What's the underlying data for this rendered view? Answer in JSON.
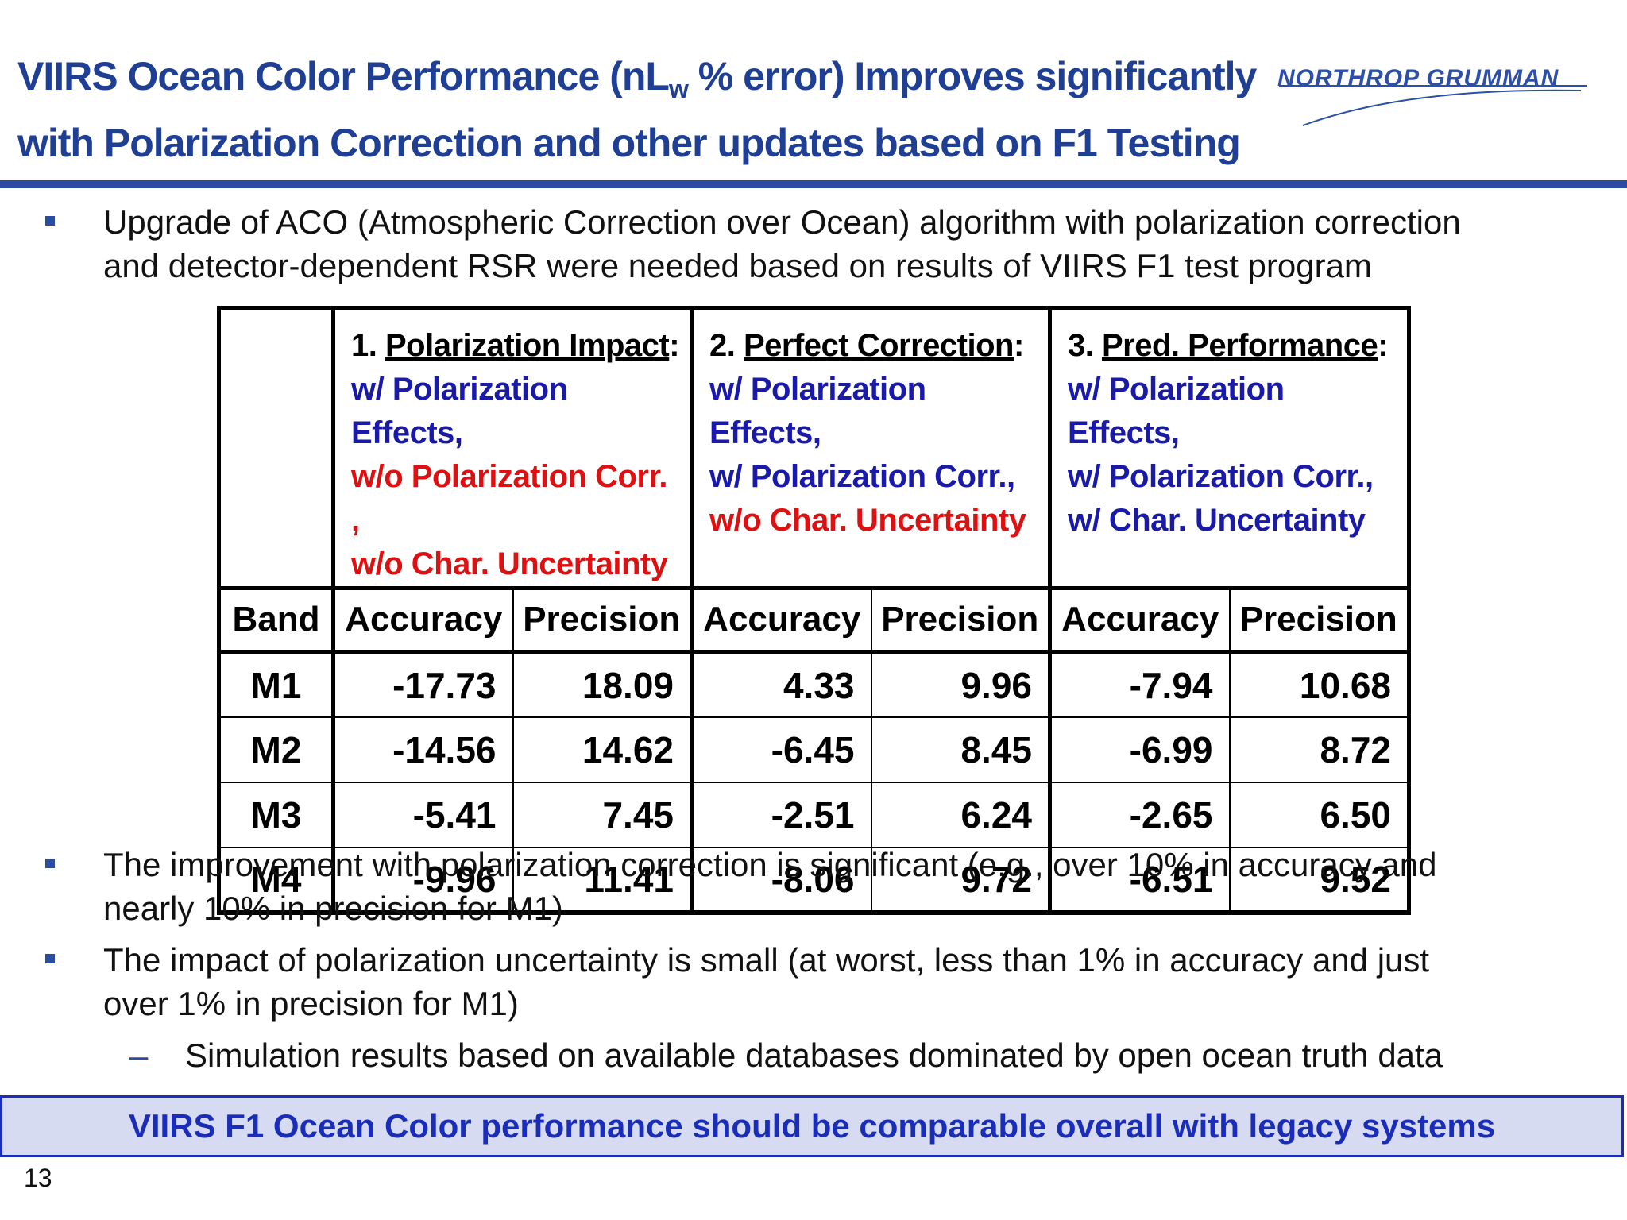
{
  "slide": {
    "title_line1_pre": "VIIRS Ocean Color Performance (nL",
    "title_line1_sub": "w",
    "title_line1_post": " % error) Improves significantly",
    "title_line2": "with Polarization Correction and other updates based on F1 Testing",
    "logo_text": "NORTHROP GRUMMAN",
    "page_number": "13",
    "banner": "VIIRS F1 Ocean Color performance should be comparable overall with legacy systems"
  },
  "bullets": [
    {
      "line1": "Upgrade of ACO (Atmospheric Correction over Ocean) algorithm with polarization correction",
      "line2": "and detector-dependent RSR were needed based on results of VIIRS F1 test program"
    },
    {
      "line1": "The improvement with polarization correction is significant (e.g., over 10% in accuracy and",
      "line2": "nearly 10% in precision for M1)"
    },
    {
      "line1": "The impact of polarization uncertainty is small (at worst, less than 1% in accuracy and just",
      "line2": "over 1% in precision for M1)"
    }
  ],
  "sub_bullet": {
    "dash": "–",
    "text": "Simulation results based on available databases dominated by open ocean truth data"
  },
  "table": {
    "groups": [
      {
        "num": "1.",
        "name": "Polarization Impact",
        "colon": ":",
        "l1": "w/ Polarization Effects,",
        "l2": "w/o Polarization Corr. ,",
        "l3": "w/o Char. Uncertainty"
      },
      {
        "num": "2.",
        "name": "Perfect Correction",
        "colon": ":",
        "l1": "w/ Polarization Effects,",
        "l2": "w/ Polarization Corr.,",
        "l3": "w/o Char. Uncertainty"
      },
      {
        "num": "3.",
        "name": "Pred. Performance",
        "colon": ":",
        "l1": "w/ Polarization Effects,",
        "l2": "w/ Polarization Corr.,",
        "l3": "w/ Char. Uncertainty"
      }
    ],
    "col_band": "Band",
    "col_accuracy": "Accuracy",
    "col_precision": "Precision",
    "rows": [
      {
        "band": "M1",
        "values": [
          "-17.73",
          "18.09",
          "4.33",
          "9.96",
          "-7.94",
          "10.68"
        ]
      },
      {
        "band": "M2",
        "values": [
          "-14.56",
          "14.62",
          "-6.45",
          "8.45",
          "-6.99",
          "8.72"
        ]
      },
      {
        "band": "M3",
        "values": [
          "-5.41",
          "7.45",
          "-2.51",
          "6.24",
          "-2.65",
          "6.50"
        ]
      },
      {
        "band": "M4",
        "values": [
          "-9.96",
          "11.41",
          "-8.06",
          "9.72",
          "-6.51",
          "9.52"
        ]
      }
    ]
  },
  "colors": {
    "title_blue": "#1f3f94",
    "rule_blue": "#2b4d9f",
    "text_blue": "#1a1aa8",
    "text_red": "#dd1111",
    "banner_bg": "#d6dbf1",
    "banner_text": "#1a2db8"
  }
}
